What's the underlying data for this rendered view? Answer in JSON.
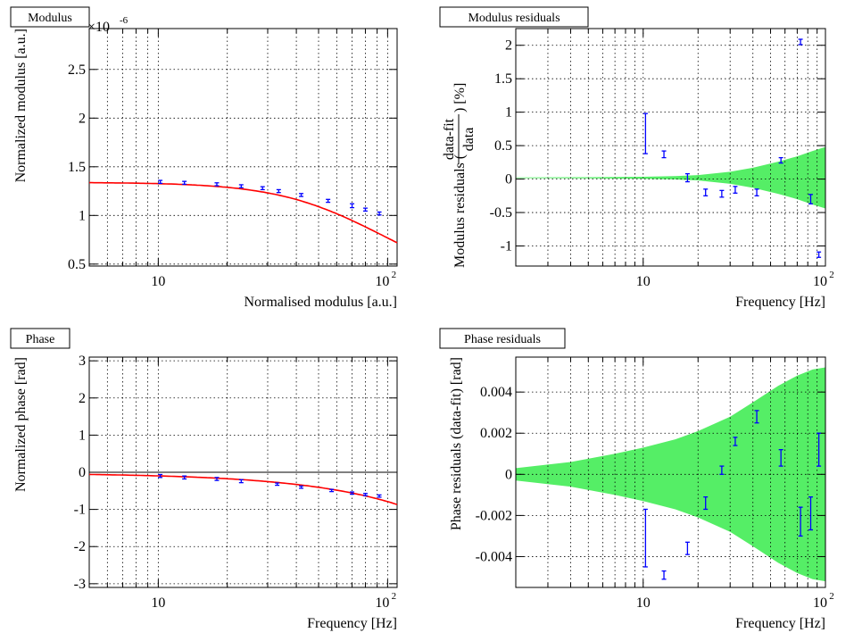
{
  "chart_data": [
    {
      "id": "modulus",
      "type": "scatter",
      "title": "Modulus",
      "xlabel": "Normalised modulus [a.u.]",
      "ylabel": "Normalized modulus [a.u.]",
      "xscale": "log",
      "xlim": [
        5,
        110
      ],
      "ylim": [
        0.48,
        2.92
      ],
      "yticks": [
        0.5,
        1,
        1.5,
        2,
        2.5
      ],
      "ytick_labels": [
        "0.5",
        "1",
        "1.5",
        "2",
        "2.5"
      ],
      "y_multiplier": {
        "base": "×10",
        "exponent": "-6"
      },
      "xtick_labels": {
        "ten": "10",
        "hundred_base": "10",
        "hundred_exp": "2"
      },
      "points": {
        "x": [
          10.2,
          13,
          18,
          23,
          28.5,
          33.5,
          42,
          55,
          70,
          80,
          92
        ],
        "y": [
          1.345,
          1.335,
          1.32,
          1.3,
          1.28,
          1.25,
          1.21,
          1.15,
          1.1,
          1.06,
          1.02
        ],
        "err": [
          0.015,
          0.015,
          0.015,
          0.015,
          0.015,
          0.015,
          0.015,
          0.015,
          0.02,
          0.015,
          0.015
        ]
      },
      "fit": {
        "type": "lowpass",
        "amplitude": 1.34,
        "cutoff_hz": 70,
        "color": "#ff0000"
      },
      "point_color": "#0000ff"
    },
    {
      "id": "modulus_residuals",
      "type": "scatter",
      "title": "Modulus residuals",
      "xlabel": "Frequency [Hz]",
      "ylabel_prefix": "Modulus residuals (",
      "ylabel_num": "data-fit",
      "ylabel_den": "data",
      "ylabel_suffix": ") [%]",
      "xscale": "log",
      "xlim": [
        2,
        100
      ],
      "ylim": [
        -1.3,
        2.25
      ],
      "yticks": [
        -1,
        -0.5,
        0,
        0.5,
        1,
        1.5,
        2
      ],
      "ytick_labels": [
        "-1",
        "-0.5",
        "0",
        "0.5",
        "1",
        "1.5",
        "2"
      ],
      "xtick_labels": {
        "ten": "10",
        "hundred_base": "10",
        "hundred_exp": "2"
      },
      "points": {
        "x": [
          10.3,
          13,
          17.5,
          22,
          27,
          32,
          42,
          57,
          73,
          83,
          92
        ],
        "y": [
          0.68,
          0.37,
          0.02,
          -0.2,
          -0.22,
          -0.16,
          -0.2,
          0.28,
          2.05,
          -0.3,
          -1.13
        ],
        "err": [
          0.3,
          0.05,
          0.06,
          0.05,
          0.05,
          0.05,
          0.05,
          0.04,
          0.04,
          0.07,
          0.04
        ]
      },
      "band": {
        "x": [
          2,
          5,
          10,
          15,
          20,
          30,
          40,
          55,
          70,
          85,
          100
        ],
        "half_width": [
          0.005,
          0.008,
          0.015,
          0.025,
          0.04,
          0.09,
          0.15,
          0.24,
          0.32,
          0.4,
          0.46
        ],
        "center": 0.02,
        "color": "#55ee66"
      },
      "point_color": "#0000ff"
    },
    {
      "id": "phase",
      "type": "scatter",
      "title": "Phase",
      "xlabel": "Frequency [Hz]",
      "ylabel": "Normalized phase [rad]",
      "xscale": "log",
      "xlim": [
        5,
        110
      ],
      "ylim": [
        -3.1,
        3.1
      ],
      "yticks": [
        -3,
        -2,
        -1,
        0,
        1,
        2,
        3
      ],
      "ytick_labels": [
        "-3",
        "-2",
        "-1",
        "0",
        "1",
        "2",
        "3"
      ],
      "xtick_labels": {
        "ten": "10",
        "hundred_base": "10",
        "hundred_exp": "2"
      },
      "points": {
        "x": [
          10.2,
          13,
          18,
          23,
          33,
          42,
          57,
          70,
          80,
          92
        ],
        "y": [
          -0.1,
          -0.14,
          -0.18,
          -0.24,
          -0.32,
          -0.4,
          -0.49,
          -0.56,
          -0.6,
          -0.64
        ],
        "err": [
          0.04,
          0.04,
          0.04,
          0.04,
          0.03,
          0.03,
          0.03,
          0.03,
          0.03,
          0.03
        ]
      },
      "fit": {
        "type": "phase",
        "cutoff_hz": 60,
        "delay_s": 0.0035,
        "color": "#ff0000"
      },
      "point_color": "#0000ff"
    },
    {
      "id": "phase_residuals",
      "type": "scatter",
      "title": "Phase residuals",
      "xlabel": "Frequency [Hz]",
      "ylabel": "Phase residuals (data-fit) [rad]",
      "xscale": "log",
      "xlim": [
        2,
        100
      ],
      "ylim": [
        -0.0055,
        0.0057
      ],
      "yticks": [
        -0.004,
        -0.002,
        0,
        0.002,
        0.004
      ],
      "ytick_labels": [
        "-0.004",
        "-0.002",
        "0",
        "0.002",
        "0.004"
      ],
      "xtick_labels": {
        "ten": "10",
        "hundred_base": "10",
        "hundred_exp": "2"
      },
      "points": {
        "x": [
          10.3,
          13,
          17.5,
          22,
          27,
          32,
          42,
          57,
          73,
          83,
          92
        ],
        "y": [
          -0.0031,
          -0.0049,
          -0.0036,
          -0.0014,
          0.0002,
          0.0016,
          0.0028,
          0.0008,
          -0.0023,
          -0.0019,
          0.0012
        ],
        "err": [
          0.0014,
          0.0002,
          0.0003,
          0.0003,
          0.0002,
          0.0002,
          0.0003,
          0.0004,
          0.0007,
          0.0008,
          0.0008
        ]
      },
      "band": {
        "x": [
          2,
          4,
          7,
          10,
          15,
          20,
          30,
          40,
          55,
          70,
          85,
          100
        ],
        "half_width": [
          0.0003,
          0.0006,
          0.001,
          0.0013,
          0.0017,
          0.0021,
          0.0028,
          0.0035,
          0.0043,
          0.0048,
          0.0051,
          0.0052
        ],
        "center": 0,
        "color": "#55ee66"
      },
      "point_color": "#0000ff"
    }
  ]
}
